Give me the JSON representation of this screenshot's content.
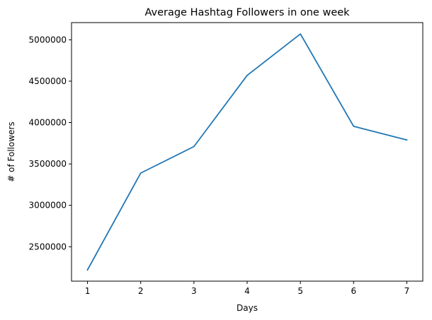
{
  "chart_data": {
    "type": "line",
    "title": "Average Hashtag Followers in one week",
    "xlabel": "Days",
    "ylabel": "# of Followers",
    "x": [
      1,
      2,
      3,
      4,
      5,
      6,
      7
    ],
    "series": [
      {
        "color": "#1f77b4",
        "values": [
          2220000,
          3390000,
          3710000,
          4570000,
          5070000,
          3955000,
          3790000
        ]
      }
    ],
    "xlim": [
      0.7,
      7.3
    ],
    "ylim": [
      2084500,
      5207500
    ],
    "xticks": [
      {
        "value": 1,
        "label": "1"
      },
      {
        "value": 2,
        "label": "2"
      },
      {
        "value": 3,
        "label": "3"
      },
      {
        "value": 4,
        "label": "4"
      },
      {
        "value": 5,
        "label": "5"
      },
      {
        "value": 6,
        "label": "6"
      },
      {
        "value": 7,
        "label": "7"
      }
    ],
    "yticks": [
      {
        "value": 2500000,
        "label": "2500000"
      },
      {
        "value": 3000000,
        "label": "3000000"
      },
      {
        "value": 3500000,
        "label": "3500000"
      },
      {
        "value": 4000000,
        "label": "4000000"
      },
      {
        "value": 4500000,
        "label": "4500000"
      },
      {
        "value": 5000000,
        "label": "5000000"
      }
    ],
    "grid": false,
    "legend": "none"
  }
}
